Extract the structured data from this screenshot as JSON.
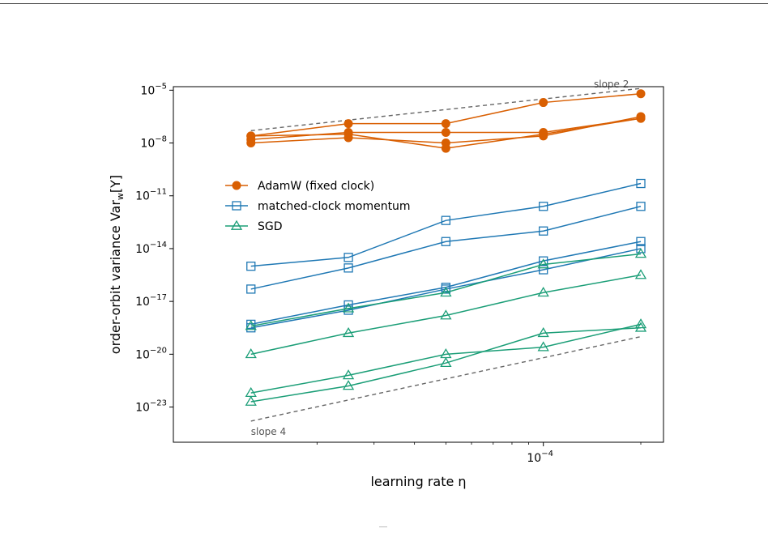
{
  "chart_data": {
    "type": "line",
    "xlabel": "learning rate η",
    "ylabel": "order-orbit variance Var_w[Y]",
    "xscale": "log",
    "yscale": "log",
    "xlim": [
      7.2e-06,
      0.000235
    ],
    "ylim_exponent": [
      -25,
      -4.8
    ],
    "x_tick_labels": [
      {
        "value": 0.0001,
        "base": "10",
        "exp": "−4"
      }
    ],
    "y_tick_labels": [
      {
        "value": -5,
        "base": "10",
        "exp": "−5"
      },
      {
        "value": -8,
        "base": "10",
        "exp": "−8"
      },
      {
        "value": -11,
        "base": "10",
        "exp": "−11"
      },
      {
        "value": -14,
        "base": "10",
        "exp": "−14"
      },
      {
        "value": -17,
        "base": "10",
        "exp": "−17"
      },
      {
        "value": -20,
        "base": "10",
        "exp": "−20"
      },
      {
        "value": -23,
        "base": "10",
        "exp": "−23"
      }
    ],
    "x_minor_ticks": [
      2e-05,
      3e-05,
      4e-05,
      5e-05,
      6e-05,
      7e-05,
      8e-05,
      9e-05,
      0.0002
    ],
    "x": [
      1.25e-05,
      2.5e-05,
      5e-05,
      0.0001,
      0.0002
    ],
    "legend": {
      "position": "upper-left",
      "entries": [
        "AdamW (fixed clock)",
        "matched-clock momentum",
        "SGD"
      ]
    },
    "series": [
      {
        "group": "adamw",
        "color": "#d95f02",
        "marker": "circle-filled",
        "y_log10": [
          -7.6,
          -6.9,
          -6.9,
          -5.7,
          -5.2
        ]
      },
      {
        "group": "adamw",
        "color": "#d95f02",
        "marker": "circle-filled",
        "y_log10": [
          -7.8,
          -7.4,
          -7.4,
          -7.4,
          -6.6
        ]
      },
      {
        "group": "adamw",
        "color": "#d95f02",
        "marker": "circle-filled",
        "y_log10": [
          -8.0,
          -7.7,
          -8.0,
          -7.6,
          -6.5
        ]
      },
      {
        "group": "adamw",
        "color": "#d95f02",
        "marker": "circle-filled",
        "y_log10": [
          -7.6,
          -7.5,
          -8.3,
          -7.5,
          -6.6
        ]
      },
      {
        "group": "momentum",
        "color": "#1f78b4",
        "marker": "square-open",
        "y_log10": [
          -15.0,
          -14.5,
          -12.4,
          -11.6,
          -10.3
        ]
      },
      {
        "group": "momentum",
        "color": "#1f78b4",
        "marker": "square-open",
        "y_log10": [
          -16.3,
          -15.1,
          -13.6,
          -13.0,
          -11.6
        ]
      },
      {
        "group": "momentum",
        "color": "#1f78b4",
        "marker": "square-open",
        "y_log10": [
          -18.3,
          -17.2,
          -16.2,
          -14.7,
          -13.6
        ]
      },
      {
        "group": "momentum",
        "color": "#1f78b4",
        "marker": "square-open",
        "y_log10": [
          -18.5,
          -17.5,
          -16.3,
          -15.2,
          -14.0
        ]
      },
      {
        "group": "sgd",
        "color": "#1b9e77",
        "marker": "triangle-open",
        "y_log10": [
          -18.4,
          -17.4,
          -16.5,
          -14.9,
          -14.3
        ]
      },
      {
        "group": "sgd",
        "color": "#1b9e77",
        "marker": "triangle-open",
        "y_log10": [
          -20.0,
          -18.8,
          -17.8,
          -16.5,
          -15.5
        ]
      },
      {
        "group": "sgd",
        "color": "#1b9e77",
        "marker": "triangle-open",
        "y_log10": [
          -22.2,
          -21.2,
          -20.0,
          -19.6,
          -18.3
        ]
      },
      {
        "group": "sgd",
        "color": "#1b9e77",
        "marker": "triangle-open",
        "y_log10": [
          -22.7,
          -21.8,
          -20.5,
          -18.8,
          -18.5
        ]
      }
    ],
    "reference_lines": [
      {
        "label": "slope 2",
        "color": "#666666",
        "dash": true,
        "x": [
          1.25e-05,
          0.0002
        ],
        "y_log10": [
          -7.3,
          -4.9
        ]
      },
      {
        "label": "slope 4",
        "color": "#666666",
        "dash": true,
        "x": [
          1.25e-05,
          0.0002
        ],
        "y_log10": [
          -23.8,
          -19.0
        ]
      }
    ]
  }
}
